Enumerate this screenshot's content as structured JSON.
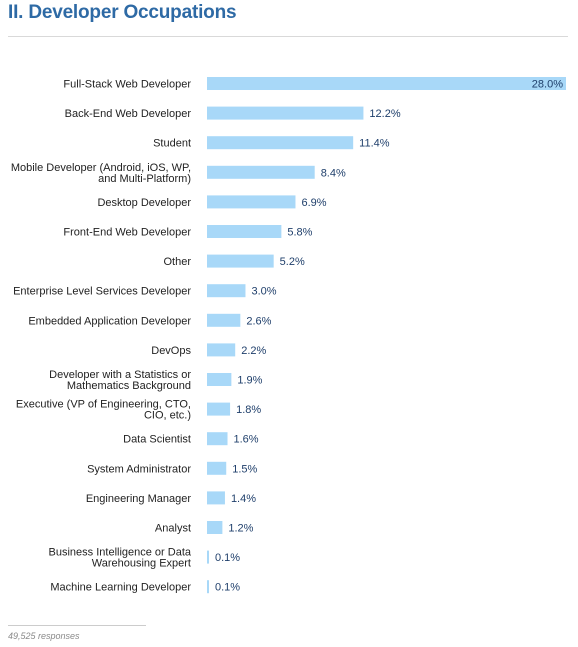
{
  "page": {
    "title": "II. Developer Occupations",
    "footnote": "49,525 responses"
  },
  "colors": {
    "title": "#2e6aa5",
    "bar": "#a8d8f8",
    "value_text": "#1f3f6b"
  },
  "chart_data": {
    "type": "bar",
    "orientation": "horizontal",
    "title": "II. Developer Occupations",
    "xlim": [
      0,
      28
    ],
    "grid": false,
    "categories": [
      [
        "Full-Stack Web Developer"
      ],
      [
        "Back-End Web Developer"
      ],
      [
        "Student"
      ],
      [
        "Mobile Developer (Android, iOS, WP,",
        "and Multi-Platform)"
      ],
      [
        "Desktop Developer"
      ],
      [
        "Front-End Web Developer"
      ],
      [
        "Other"
      ],
      [
        "Enterprise Level Services Developer"
      ],
      [
        "Embedded Application Developer"
      ],
      [
        "DevOps"
      ],
      [
        "Developer with a Statistics or",
        "Mathematics Background"
      ],
      [
        "Executive (VP of Engineering, CTO,",
        "CIO, etc.)"
      ],
      [
        "Data Scientist"
      ],
      [
        "System Administrator"
      ],
      [
        "Engineering Manager"
      ],
      [
        "Analyst"
      ],
      [
        "Business Intelligence or Data",
        "Warehousing Expert"
      ],
      [
        "Machine Learning Developer"
      ]
    ],
    "values": [
      28.0,
      12.2,
      11.4,
      8.4,
      6.9,
      5.8,
      5.2,
      3.0,
      2.6,
      2.2,
      1.9,
      1.8,
      1.6,
      1.5,
      1.4,
      1.2,
      0.1,
      0.1
    ],
    "value_labels": [
      "28.0%",
      "12.2%",
      "11.4%",
      "8.4%",
      "6.9%",
      "5.8%",
      "5.2%",
      "3.0%",
      "2.6%",
      "2.2%",
      "1.9%",
      "1.8%",
      "1.6%",
      "1.5%",
      "1.4%",
      "1.2%",
      "0.1%",
      "0.1%"
    ]
  }
}
